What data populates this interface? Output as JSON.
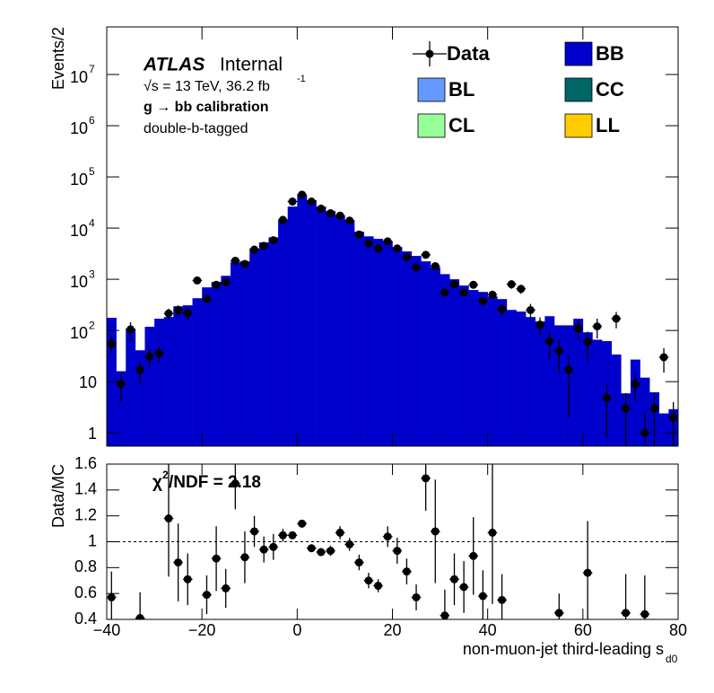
{
  "chart_data": [
    {
      "type": "hist_log",
      "ylabel": "Events/2",
      "atlas": "ATLAS",
      "atlas_status": "Internal",
      "lumi_text": "√s = 13 TeV, 36.2 fb",
      "lumi_exponent": "-1",
      "calib_text": "g  → bb calibration",
      "tag_text": "double-b-tagged",
      "log_y": true,
      "xlim": [
        -40,
        80
      ],
      "ylim": [
        0.55,
        85000000
      ],
      "yticks": [
        {
          "value": 10000000,
          "label": "10",
          "exponent": "7"
        },
        {
          "value": 1000000,
          "label": "10",
          "exponent": "6"
        },
        {
          "value": 100000,
          "label": "10",
          "exponent": "5"
        },
        {
          "value": 10000,
          "label": "10",
          "exponent": "4"
        },
        {
          "value": 1000,
          "label": "10",
          "exponent": "3"
        },
        {
          "value": 100,
          "label": "10",
          "exponent": "2"
        },
        10,
        1
      ],
      "bins": [
        -40,
        -38,
        -36,
        -34,
        -32,
        -30,
        -28,
        -26,
        -24,
        -22,
        -20,
        -18,
        -16,
        -14,
        -12,
        -10,
        -8,
        -6,
        -4,
        -2,
        0,
        2,
        4,
        6,
        8,
        10,
        12,
        14,
        16,
        18,
        20,
        22,
        24,
        26,
        28,
        30,
        32,
        34,
        36,
        38,
        40,
        42,
        44,
        46,
        48,
        50,
        52,
        54,
        56,
        58,
        60,
        62,
        64,
        66,
        68,
        70,
        72,
        74,
        76,
        78,
        80
      ],
      "x": [
        -39,
        -37,
        -35,
        -33,
        -31,
        -29,
        -27,
        -25,
        -23,
        -21,
        -19,
        -17,
        -15,
        -13,
        -11,
        -9,
        -7,
        -5,
        -3,
        -1,
        1,
        3,
        5,
        7,
        9,
        11,
        13,
        15,
        17,
        19,
        21,
        23,
        25,
        27,
        29,
        31,
        33,
        35,
        37,
        39,
        41,
        43,
        45,
        47,
        49,
        51,
        53,
        55,
        57,
        59,
        61,
        63,
        65,
        67,
        69,
        71,
        73,
        75,
        77,
        79
      ],
      "series": [
        {
          "name": "BB",
          "color": "#0000cc",
          "values": [
            177,
            16,
            108,
            41,
            118,
            170,
            183,
            297,
            310,
            427,
            695,
            890,
            1170,
            2150,
            2240,
            3980,
            5250,
            6600,
            14400,
            26300,
            44600,
            35000,
            26300,
            21500,
            17600,
            14400,
            8500,
            6900,
            6160,
            5450,
            4270,
            3500,
            2860,
            2240,
            1700,
            1260,
            1000,
            755,
            617,
            566,
            464,
            410,
            252,
            234,
            183,
            150,
            190,
            126,
            126,
            170,
            92,
            66,
            62,
            34,
            5.9,
            27,
            12,
            6.2,
            2.4,
            2.9
          ]
        },
        {
          "name": "Data",
          "color": "#000000",
          "values": [
            55,
            9,
            105,
            17,
            31,
            36,
            215,
            250,
            220,
            950,
            410,
            780,
            880,
            2300,
            2000,
            3800,
            4500,
            5800,
            14500,
            33000,
            45000,
            33000,
            24000,
            19500,
            17500,
            14000,
            7500,
            5000,
            4000,
            5500,
            4000,
            2700,
            1700,
            3000,
            1800,
            550,
            800,
            550,
            780,
            380,
            500,
            260,
            800,
            650,
            250,
            130,
            62,
            40,
            17,
            110,
            60,
            120,
            4.8,
            170,
            3,
            9,
            1,
            3,
            30,
            2
          ],
          "errors": [
            20,
            5,
            40,
            8,
            12,
            12,
            50,
            60,
            60,
            100,
            70,
            90,
            100,
            150,
            150,
            200,
            220,
            250,
            400,
            600,
            700,
            600,
            500,
            450,
            420,
            380,
            280,
            220,
            200,
            240,
            200,
            170,
            130,
            180,
            140,
            80,
            100,
            80,
            100,
            70,
            80,
            60,
            150,
            130,
            80,
            50,
            35,
            25,
            15,
            45,
            35,
            50,
            4,
            60,
            3,
            5,
            1.5,
            3,
            15,
            2
          ]
        }
      ],
      "legend": [
        {
          "name": "Data"
        },
        {
          "name": "BB",
          "color": "#0000cc"
        },
        {
          "name": "BL",
          "color": "#6699ff"
        },
        {
          "name": "CC",
          "color": "#006666"
        },
        {
          "name": "CL",
          "color": "#99ff99"
        },
        {
          "name": "LL",
          "color": "#ffcc00"
        }
      ]
    },
    {
      "type": "ratio",
      "ylabel": "Data/MC",
      "chi2_symbol": "χ",
      "chi2_exponent": "2",
      "chi2_text": "/NDF = 2.18",
      "xlabel": "non-muon-jet third-leading s",
      "xlabel_subscript": "d0",
      "xlim": [
        -40,
        80
      ],
      "ylim": [
        0.4,
        1.6
      ],
      "xticks": [
        {
          "value": -40,
          "label": "−40"
        },
        {
          "value": -20,
          "label": "−20"
        },
        0,
        20,
        40,
        60,
        80
      ],
      "yticks": [
        0.4,
        0.6,
        0.8,
        1,
        1.2,
        1.4,
        1.6
      ],
      "x": [
        -39,
        -37,
        -35,
        -33,
        -31,
        -29,
        -27,
        -25,
        -23,
        -21,
        -19,
        -17,
        -15,
        -13,
        -11,
        -9,
        -7,
        -5,
        -3,
        -1,
        1,
        3,
        5,
        7,
        9,
        11,
        13,
        15,
        17,
        19,
        21,
        23,
        25,
        27,
        29,
        31,
        33,
        35,
        37,
        39,
        41,
        43,
        45,
        47,
        49,
        51,
        53,
        55,
        57,
        59,
        61,
        63,
        65,
        67,
        69,
        71,
        73,
        75,
        77,
        79
      ],
      "values": [
        0.57,
        null,
        null,
        0.41,
        null,
        null,
        1.18,
        0.84,
        0.71,
        null,
        0.59,
        0.87,
        0.64,
        1.45,
        0.88,
        1.08,
        0.94,
        0.96,
        1.05,
        1.05,
        1.14,
        0.95,
        0.92,
        0.93,
        1.07,
        0.98,
        0.84,
        0.7,
        0.66,
        1.04,
        0.93,
        0.77,
        0.57,
        1.49,
        1.08,
        0.43,
        0.71,
        0.65,
        0.89,
        0.58,
        1.07,
        0.55,
        null,
        null,
        null,
        null,
        null,
        0.45,
        null,
        null,
        0.76,
        null,
        null,
        null,
        0.45,
        null,
        0.44,
        null,
        null,
        null
      ],
      "errors": [
        0.2,
        null,
        null,
        0.2,
        null,
        null,
        0.45,
        0.3,
        0.2,
        null,
        0.15,
        0.25,
        0.15,
        0.2,
        0.2,
        0.12,
        0.1,
        0.1,
        0.05,
        0.03,
        0.03,
        0.03,
        0.03,
        0.04,
        0.05,
        0.05,
        0.06,
        0.06,
        0.05,
        0.08,
        0.1,
        0.1,
        0.1,
        0.25,
        0.4,
        0.2,
        0.2,
        0.2,
        0.3,
        0.2,
        0.55,
        0.2,
        null,
        null,
        null,
        null,
        null,
        0.15,
        null,
        null,
        0.4,
        null,
        null,
        null,
        0.3,
        null,
        0.3,
        null,
        null,
        null
      ],
      "color": "#000000"
    }
  ]
}
